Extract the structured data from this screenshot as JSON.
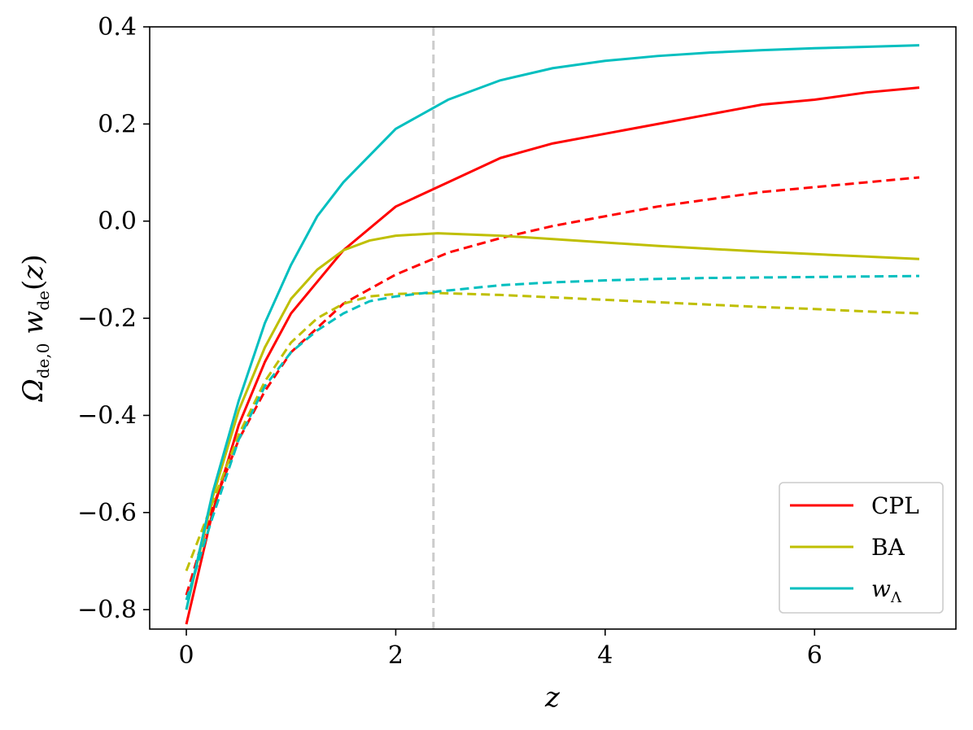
{
  "chart_data": {
    "type": "line",
    "xlabel": "z",
    "ylabel": "Ω_{de,0} w_de(z)",
    "xlim": [
      -0.35,
      7.35
    ],
    "ylim": [
      -0.84,
      0.4
    ],
    "xticks": [
      0,
      2,
      4,
      6
    ],
    "yticks": [
      -0.8,
      -0.6,
      -0.4,
      -0.2,
      0.0,
      0.2,
      0.4
    ],
    "xtick_labels": [
      "0",
      "2",
      "4",
      "6"
    ],
    "ytick_labels": [
      "−0.8",
      "−0.6",
      "−0.4",
      "−0.2",
      "0.0",
      "0.2",
      "0.4"
    ],
    "grid": false,
    "vline": {
      "x": 2.36,
      "color": "#cccccc",
      "style": "dashed"
    },
    "legend": {
      "location": "lower-right",
      "entries": [
        {
          "label": "CPL",
          "color": "#ff0000"
        },
        {
          "label": "BA",
          "color": "#bfbf00"
        },
        {
          "label": "w_Λ",
          "label_main": "w",
          "label_sub": "Λ",
          "color": "#00bfbf"
        }
      ]
    },
    "series": [
      {
        "name": "CPL",
        "color": "#ff0000",
        "style": "solid",
        "x": [
          0,
          0.25,
          0.5,
          0.75,
          1.0,
          1.5,
          2.0,
          2.5,
          3.0,
          3.5,
          4.0,
          4.5,
          5.0,
          5.5,
          6.0,
          6.5,
          7.0
        ],
        "y": [
          -0.83,
          -0.6,
          -0.42,
          -0.29,
          -0.19,
          -0.06,
          0.03,
          0.08,
          0.13,
          0.16,
          0.18,
          0.2,
          0.22,
          0.24,
          0.25,
          0.265,
          0.275
        ]
      },
      {
        "style": "dashed",
        "color": "#ff0000",
        "x": [
          0,
          0.25,
          0.5,
          0.75,
          1.0,
          1.5,
          2.0,
          2.5,
          3.0,
          3.5,
          4.0,
          4.5,
          5.0,
          5.5,
          6.0,
          6.5,
          7.0
        ],
        "y": [
          -0.77,
          -0.59,
          -0.45,
          -0.35,
          -0.27,
          -0.17,
          -0.11,
          -0.065,
          -0.035,
          -0.01,
          0.01,
          0.03,
          0.045,
          0.06,
          0.07,
          0.08,
          0.09
        ]
      },
      {
        "name": "BA",
        "color": "#bfbf00",
        "style": "solid",
        "x": [
          0,
          0.25,
          0.5,
          0.75,
          1.0,
          1.25,
          1.5,
          1.75,
          2.0,
          2.4,
          3.0,
          3.5,
          4.0,
          4.5,
          5.0,
          5.5,
          6.0,
          6.5,
          7.0
        ],
        "y": [
          -0.8,
          -0.57,
          -0.39,
          -0.26,
          -0.16,
          -0.1,
          -0.06,
          -0.04,
          -0.03,
          -0.025,
          -0.03,
          -0.037,
          -0.044,
          -0.051,
          -0.057,
          -0.063,
          -0.068,
          -0.073,
          -0.078
        ]
      },
      {
        "style": "dashed",
        "color": "#bfbf00",
        "x": [
          0,
          0.25,
          0.5,
          0.75,
          1.0,
          1.25,
          1.5,
          1.75,
          2.0,
          2.4,
          3.0,
          3.5,
          4.0,
          4.5,
          5.0,
          5.5,
          6.0,
          6.5,
          7.0
        ],
        "y": [
          -0.72,
          -0.58,
          -0.44,
          -0.33,
          -0.25,
          -0.2,
          -0.17,
          -0.155,
          -0.15,
          -0.148,
          -0.152,
          -0.157,
          -0.162,
          -0.167,
          -0.172,
          -0.177,
          -0.181,
          -0.186,
          -0.19
        ]
      },
      {
        "name": "w_Λ",
        "color": "#00bfbf",
        "style": "solid",
        "x": [
          0,
          0.25,
          0.5,
          0.75,
          1.0,
          1.25,
          1.5,
          2.0,
          2.5,
          3.0,
          3.5,
          4.0,
          4.5,
          5.0,
          5.5,
          6.0,
          6.5,
          7.0
        ],
        "y": [
          -0.8,
          -0.56,
          -0.37,
          -0.21,
          -0.09,
          0.01,
          0.08,
          0.19,
          0.25,
          0.29,
          0.315,
          0.33,
          0.34,
          0.347,
          0.352,
          0.356,
          0.359,
          0.362
        ]
      },
      {
        "style": "dashed",
        "color": "#00bfbf",
        "x": [
          0,
          0.25,
          0.5,
          0.75,
          1.0,
          1.25,
          1.5,
          1.75,
          2.0,
          2.4,
          3.0,
          3.5,
          4.0,
          4.5,
          5.0,
          5.5,
          6.0,
          6.5,
          7.0
        ],
        "y": [
          -0.78,
          -0.61,
          -0.45,
          -0.34,
          -0.27,
          -0.225,
          -0.19,
          -0.165,
          -0.155,
          -0.145,
          -0.132,
          -0.126,
          -0.122,
          -0.119,
          -0.117,
          -0.116,
          -0.115,
          -0.114,
          -0.113
        ]
      }
    ]
  }
}
